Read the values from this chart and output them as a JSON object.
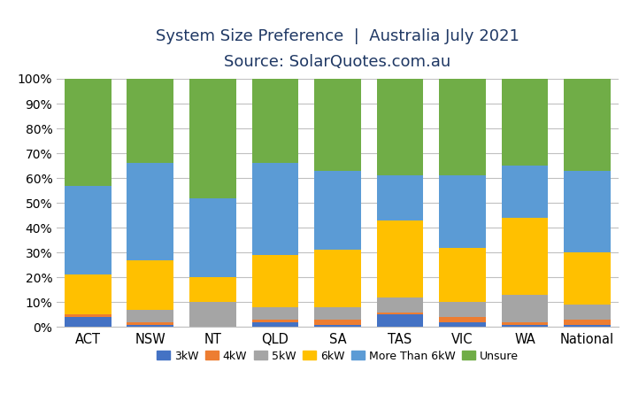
{
  "title_line1": "System Size Preference  |  Australia July 2021",
  "title_line2": "Source: SolarQuotes.com.au",
  "categories": [
    "ACT",
    "NSW",
    "NT",
    "QLD",
    "SA",
    "TAS",
    "VIC",
    "WA",
    "National"
  ],
  "series": {
    "3kW": [
      4,
      1,
      0,
      2,
      1,
      5,
      2,
      1,
      1
    ],
    "4kW": [
      1,
      1,
      0,
      1,
      2,
      1,
      2,
      1,
      2
    ],
    "5kW": [
      0,
      5,
      10,
      5,
      5,
      6,
      6,
      11,
      6
    ],
    "6kW": [
      16,
      20,
      10,
      21,
      23,
      31,
      22,
      31,
      21
    ],
    "More Than 6kW": [
      36,
      39,
      32,
      37,
      32,
      18,
      29,
      21,
      33
    ],
    "Unsure": [
      43,
      34,
      48,
      34,
      37,
      39,
      39,
      35,
      37
    ]
  },
  "colors": {
    "3kW": "#4472C4",
    "4kW": "#ED7D31",
    "5kW": "#A5A5A5",
    "6kW": "#FFC000",
    "More Than 6kW": "#5B9BD5",
    "Unsure": "#70AD47"
  },
  "legend_order": [
    "3kW",
    "4kW",
    "5kW",
    "6kW",
    "More Than 6kW",
    "Unsure"
  ],
  "ylim": [
    0,
    100
  ],
  "ytick_labels": [
    "0%",
    "10%",
    "20%",
    "30%",
    "40%",
    "50%",
    "60%",
    "70%",
    "80%",
    "90%",
    "100%"
  ],
  "ytick_values": [
    0,
    10,
    20,
    30,
    40,
    50,
    60,
    70,
    80,
    90,
    100
  ],
  "background_color": "#FFFFFF",
  "grid_color": "#C0C0C0",
  "title_color": "#1F3864",
  "title_fontsize": 13,
  "source_fontsize": 12,
  "bar_width": 0.75
}
